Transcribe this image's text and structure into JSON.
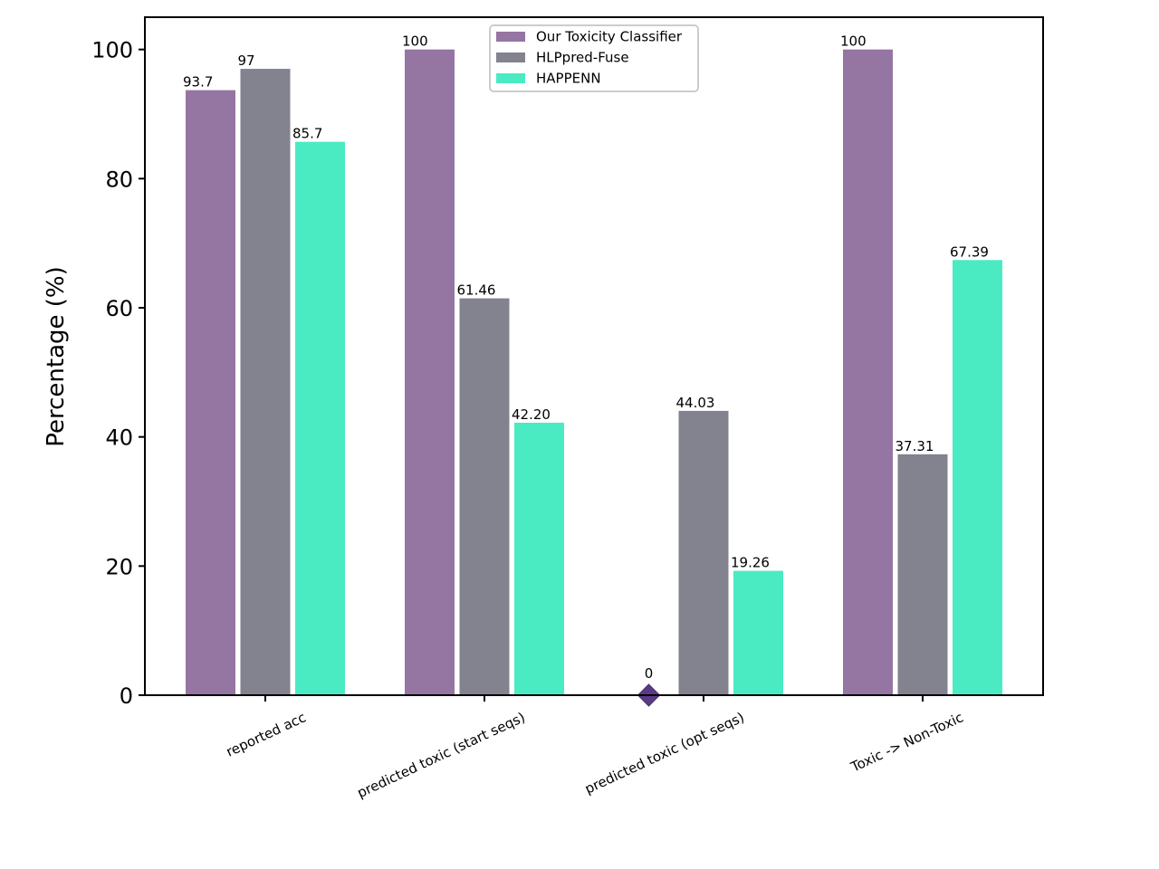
{
  "chart_data": {
    "type": "bar",
    "title": "",
    "xlabel": "",
    "ylabel": "Percentage (%)",
    "ylim": [
      0,
      105
    ],
    "yticks": [
      "0",
      "20",
      "40",
      "60",
      "80",
      "100"
    ],
    "categories": [
      "reported acc",
      "predicted toxic (start seqs)",
      "predicted toxic (opt seqs)",
      "Toxic -> Non-Toxic"
    ],
    "series": [
      {
        "name": "Our Toxicity Classifier",
        "color": "#9575a2",
        "values": [
          93.7,
          100,
          0,
          100
        ],
        "labels": [
          "93.7",
          "100",
          "0",
          "100"
        ]
      },
      {
        "name": "HLPpred-Fuse",
        "color": "#83828f",
        "values": [
          97,
          61.46,
          44.03,
          37.31
        ],
        "labels": [
          "97",
          "61.46",
          "44.03",
          "37.31"
        ]
      },
      {
        "name": "HAPPENN",
        "color": "#4aebc3",
        "values": [
          85.7,
          42.2,
          19.26,
          67.39
        ],
        "labels": [
          "85.7",
          "42.20",
          "19.26",
          "67.39"
        ]
      }
    ],
    "zero_marker": {
      "series": "Our Toxicity Classifier",
      "category": "predicted toxic (opt seqs)",
      "shape": "diamond",
      "color": "#5b3a85"
    },
    "legend_position": "top-center",
    "grid": false
  }
}
